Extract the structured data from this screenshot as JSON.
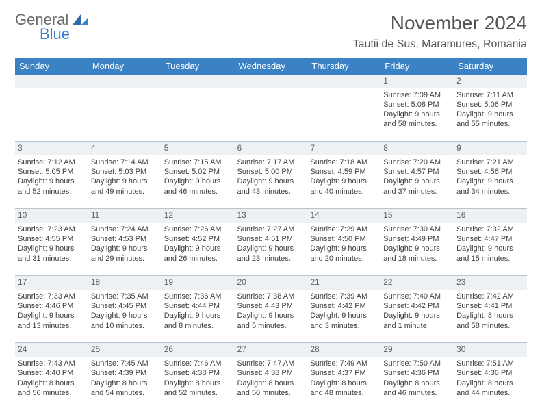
{
  "brand": {
    "line1": "General",
    "line2": "Blue"
  },
  "title": "November 2024",
  "location": "Tautii de Sus, Maramures, Romania",
  "colors": {
    "header_bg": "#3b82c4",
    "header_fg": "#ffffff",
    "daynum_bg": "#eef1f4",
    "daynum_border": "#b9c4cf",
    "text": "#404040",
    "logo_gray": "#6b6b6b",
    "logo_blue": "#3b7fc4",
    "title_color": "#555555"
  },
  "day_headers": [
    "Sunday",
    "Monday",
    "Tuesday",
    "Wednesday",
    "Thursday",
    "Friday",
    "Saturday"
  ],
  "weeks": [
    {
      "nums": [
        "",
        "",
        "",
        "",
        "",
        "1",
        "2"
      ],
      "cells": [
        {
          "lines": []
        },
        {
          "lines": []
        },
        {
          "lines": []
        },
        {
          "lines": []
        },
        {
          "lines": []
        },
        {
          "lines": [
            "Sunrise: 7:09 AM",
            "Sunset: 5:08 PM",
            "Daylight: 9 hours and 58 minutes."
          ]
        },
        {
          "lines": [
            "Sunrise: 7:11 AM",
            "Sunset: 5:06 PM",
            "Daylight: 9 hours and 55 minutes."
          ]
        }
      ]
    },
    {
      "nums": [
        "3",
        "4",
        "5",
        "6",
        "7",
        "8",
        "9"
      ],
      "cells": [
        {
          "lines": [
            "Sunrise: 7:12 AM",
            "Sunset: 5:05 PM",
            "Daylight: 9 hours and 52 minutes."
          ]
        },
        {
          "lines": [
            "Sunrise: 7:14 AM",
            "Sunset: 5:03 PM",
            "Daylight: 9 hours and 49 minutes."
          ]
        },
        {
          "lines": [
            "Sunrise: 7:15 AM",
            "Sunset: 5:02 PM",
            "Daylight: 9 hours and 46 minutes."
          ]
        },
        {
          "lines": [
            "Sunrise: 7:17 AM",
            "Sunset: 5:00 PM",
            "Daylight: 9 hours and 43 minutes."
          ]
        },
        {
          "lines": [
            "Sunrise: 7:18 AM",
            "Sunset: 4:59 PM",
            "Daylight: 9 hours and 40 minutes."
          ]
        },
        {
          "lines": [
            "Sunrise: 7:20 AM",
            "Sunset: 4:57 PM",
            "Daylight: 9 hours and 37 minutes."
          ]
        },
        {
          "lines": [
            "Sunrise: 7:21 AM",
            "Sunset: 4:56 PM",
            "Daylight: 9 hours and 34 minutes."
          ]
        }
      ]
    },
    {
      "nums": [
        "10",
        "11",
        "12",
        "13",
        "14",
        "15",
        "16"
      ],
      "cells": [
        {
          "lines": [
            "Sunrise: 7:23 AM",
            "Sunset: 4:55 PM",
            "Daylight: 9 hours and 31 minutes."
          ]
        },
        {
          "lines": [
            "Sunrise: 7:24 AM",
            "Sunset: 4:53 PM",
            "Daylight: 9 hours and 29 minutes."
          ]
        },
        {
          "lines": [
            "Sunrise: 7:26 AM",
            "Sunset: 4:52 PM",
            "Daylight: 9 hours and 26 minutes."
          ]
        },
        {
          "lines": [
            "Sunrise: 7:27 AM",
            "Sunset: 4:51 PM",
            "Daylight: 9 hours and 23 minutes."
          ]
        },
        {
          "lines": [
            "Sunrise: 7:29 AM",
            "Sunset: 4:50 PM",
            "Daylight: 9 hours and 20 minutes."
          ]
        },
        {
          "lines": [
            "Sunrise: 7:30 AM",
            "Sunset: 4:49 PM",
            "Daylight: 9 hours and 18 minutes."
          ]
        },
        {
          "lines": [
            "Sunrise: 7:32 AM",
            "Sunset: 4:47 PM",
            "Daylight: 9 hours and 15 minutes."
          ]
        }
      ]
    },
    {
      "nums": [
        "17",
        "18",
        "19",
        "20",
        "21",
        "22",
        "23"
      ],
      "cells": [
        {
          "lines": [
            "Sunrise: 7:33 AM",
            "Sunset: 4:46 PM",
            "Daylight: 9 hours and 13 minutes."
          ]
        },
        {
          "lines": [
            "Sunrise: 7:35 AM",
            "Sunset: 4:45 PM",
            "Daylight: 9 hours and 10 minutes."
          ]
        },
        {
          "lines": [
            "Sunrise: 7:36 AM",
            "Sunset: 4:44 PM",
            "Daylight: 9 hours and 8 minutes."
          ]
        },
        {
          "lines": [
            "Sunrise: 7:38 AM",
            "Sunset: 4:43 PM",
            "Daylight: 9 hours and 5 minutes."
          ]
        },
        {
          "lines": [
            "Sunrise: 7:39 AM",
            "Sunset: 4:42 PM",
            "Daylight: 9 hours and 3 minutes."
          ]
        },
        {
          "lines": [
            "Sunrise: 7:40 AM",
            "Sunset: 4:42 PM",
            "Daylight: 9 hours and 1 minute."
          ]
        },
        {
          "lines": [
            "Sunrise: 7:42 AM",
            "Sunset: 4:41 PM",
            "Daylight: 8 hours and 58 minutes."
          ]
        }
      ]
    },
    {
      "nums": [
        "24",
        "25",
        "26",
        "27",
        "28",
        "29",
        "30"
      ],
      "cells": [
        {
          "lines": [
            "Sunrise: 7:43 AM",
            "Sunset: 4:40 PM",
            "Daylight: 8 hours and 56 minutes."
          ]
        },
        {
          "lines": [
            "Sunrise: 7:45 AM",
            "Sunset: 4:39 PM",
            "Daylight: 8 hours and 54 minutes."
          ]
        },
        {
          "lines": [
            "Sunrise: 7:46 AM",
            "Sunset: 4:38 PM",
            "Daylight: 8 hours and 52 minutes."
          ]
        },
        {
          "lines": [
            "Sunrise: 7:47 AM",
            "Sunset: 4:38 PM",
            "Daylight: 8 hours and 50 minutes."
          ]
        },
        {
          "lines": [
            "Sunrise: 7:49 AM",
            "Sunset: 4:37 PM",
            "Daylight: 8 hours and 48 minutes."
          ]
        },
        {
          "lines": [
            "Sunrise: 7:50 AM",
            "Sunset: 4:36 PM",
            "Daylight: 8 hours and 46 minutes."
          ]
        },
        {
          "lines": [
            "Sunrise: 7:51 AM",
            "Sunset: 4:36 PM",
            "Daylight: 8 hours and 44 minutes."
          ]
        }
      ]
    }
  ]
}
